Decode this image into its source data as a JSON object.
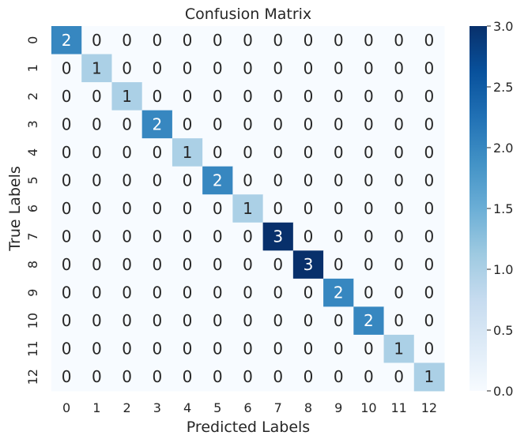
{
  "chart_data": {
    "type": "heatmap",
    "title": "Confusion Matrix",
    "xlabel": "Predicted Labels",
    "ylabel": "True Labels",
    "x_categories": [
      "0",
      "1",
      "2",
      "3",
      "4",
      "5",
      "6",
      "7",
      "8",
      "9",
      "10",
      "11",
      "12"
    ],
    "y_categories": [
      "0",
      "1",
      "2",
      "3",
      "4",
      "5",
      "6",
      "7",
      "8",
      "9",
      "10",
      "11",
      "12"
    ],
    "matrix": [
      [
        2,
        0,
        0,
        0,
        0,
        0,
        0,
        0,
        0,
        0,
        0,
        0,
        0
      ],
      [
        0,
        1,
        0,
        0,
        0,
        0,
        0,
        0,
        0,
        0,
        0,
        0,
        0
      ],
      [
        0,
        0,
        1,
        0,
        0,
        0,
        0,
        0,
        0,
        0,
        0,
        0,
        0
      ],
      [
        0,
        0,
        0,
        2,
        0,
        0,
        0,
        0,
        0,
        0,
        0,
        0,
        0
      ],
      [
        0,
        0,
        0,
        0,
        1,
        0,
        0,
        0,
        0,
        0,
        0,
        0,
        0
      ],
      [
        0,
        0,
        0,
        0,
        0,
        2,
        0,
        0,
        0,
        0,
        0,
        0,
        0
      ],
      [
        0,
        0,
        0,
        0,
        0,
        0,
        1,
        0,
        0,
        0,
        0,
        0,
        0
      ],
      [
        0,
        0,
        0,
        0,
        0,
        0,
        0,
        3,
        0,
        0,
        0,
        0,
        0
      ],
      [
        0,
        0,
        0,
        0,
        0,
        0,
        0,
        0,
        3,
        0,
        0,
        0,
        0
      ],
      [
        0,
        0,
        0,
        0,
        0,
        0,
        0,
        0,
        0,
        2,
        0,
        0,
        0
      ],
      [
        0,
        0,
        0,
        0,
        0,
        0,
        0,
        0,
        0,
        0,
        2,
        0,
        0
      ],
      [
        0,
        0,
        0,
        0,
        0,
        0,
        0,
        0,
        0,
        0,
        0,
        1,
        0
      ],
      [
        0,
        0,
        0,
        0,
        0,
        0,
        0,
        0,
        0,
        0,
        0,
        0,
        1
      ]
    ],
    "colorbar": {
      "min": 0,
      "max": 3,
      "ticks": [
        "0.0",
        "0.5",
        "1.0",
        "1.5",
        "2.0",
        "2.5",
        "3.0"
      ]
    },
    "colormap": "Blues",
    "colors": {
      "low": "#f7fbff",
      "high": "#08306b",
      "text_dark": "#262626",
      "text_light": "#ffffff"
    },
    "grid": false
  }
}
